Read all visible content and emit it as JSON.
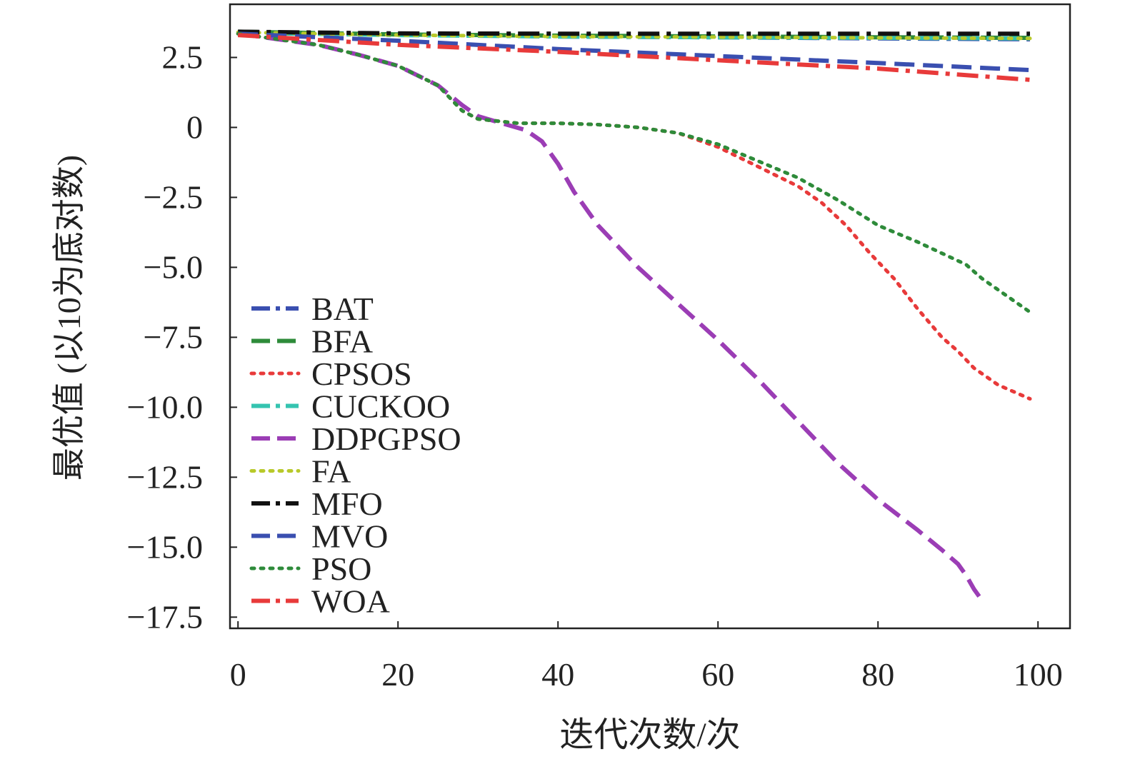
{
  "chart_data": {
    "type": "line",
    "title": "",
    "xlabel": "迭代次数/次",
    "ylabel": "最优值 (以10为底对数)",
    "xlim": [
      -1,
      104
    ],
    "ylim": [
      -17.9,
      4.4
    ],
    "xticks": [
      0,
      20,
      40,
      60,
      80,
      100
    ],
    "xtick_labels": [
      "0",
      "20",
      "40",
      "60",
      "80",
      "100"
    ],
    "yticks": [
      2.5,
      0,
      -2.5,
      -5.0,
      -7.5,
      -10.0,
      -12.5,
      -15.0,
      -17.5
    ],
    "ytick_labels": [
      "2.5",
      "0",
      "−2.5",
      "−5.0",
      "−7.5",
      "−10.0",
      "−12.5",
      "−15.0",
      "−17.5"
    ],
    "grid": false,
    "legend_position": "lower-left",
    "series": [
      {
        "name": "BAT",
        "color": "#3a4fb0",
        "dash": "dashdot",
        "points": [
          [
            0,
            3.4
          ],
          [
            20,
            3.32
          ],
          [
            40,
            3.25
          ],
          [
            60,
            3.22
          ],
          [
            80,
            3.18
          ],
          [
            99,
            3.15
          ]
        ]
      },
      {
        "name": "BFA",
        "color": "#2e8b3a",
        "dash": "dashed",
        "points": [
          [
            0,
            3.42
          ],
          [
            20,
            3.32
          ],
          [
            40,
            3.28
          ],
          [
            60,
            3.25
          ],
          [
            80,
            3.22
          ],
          [
            99,
            3.2
          ]
        ]
      },
      {
        "name": "CPSOS",
        "color": "#e83a3a",
        "dash": "dotted",
        "points": [
          [
            0,
            3.35
          ],
          [
            5,
            3.15
          ],
          [
            10,
            2.95
          ],
          [
            15,
            2.6
          ],
          [
            20,
            2.2
          ],
          [
            25,
            1.5
          ],
          [
            28,
            0.6
          ],
          [
            30,
            0.3
          ],
          [
            35,
            0.15
          ],
          [
            40,
            0.15
          ],
          [
            45,
            0.1
          ],
          [
            50,
            0.0
          ],
          [
            55,
            -0.2
          ],
          [
            60,
            -0.7
          ],
          [
            65,
            -1.4
          ],
          [
            70,
            -2.1
          ],
          [
            73,
            -2.7
          ],
          [
            76,
            -3.5
          ],
          [
            79,
            -4.5
          ],
          [
            82,
            -5.4
          ],
          [
            85,
            -6.5
          ],
          [
            88,
            -7.5
          ],
          [
            90,
            -8.0
          ],
          [
            92,
            -8.6
          ],
          [
            95,
            -9.2
          ],
          [
            99,
            -9.7
          ]
        ]
      },
      {
        "name": "CUCKOO",
        "color": "#35c4b0",
        "dash": "dashdot",
        "points": [
          [
            0,
            3.38
          ],
          [
            20,
            3.3
          ],
          [
            40,
            3.25
          ],
          [
            60,
            3.22
          ],
          [
            80,
            3.2
          ],
          [
            99,
            3.18
          ]
        ]
      },
      {
        "name": "DDPGPSO",
        "color": "#9b3db5",
        "dash": "dashed",
        "points": [
          [
            0,
            3.35
          ],
          [
            5,
            3.15
          ],
          [
            10,
            2.95
          ],
          [
            15,
            2.6
          ],
          [
            20,
            2.2
          ],
          [
            25,
            1.5
          ],
          [
            28,
            0.8
          ],
          [
            30,
            0.4
          ],
          [
            33,
            0.15
          ],
          [
            36,
            -0.1
          ],
          [
            38,
            -0.5
          ],
          [
            40,
            -1.3
          ],
          [
            42,
            -2.3
          ],
          [
            45,
            -3.5
          ],
          [
            50,
            -5.0
          ],
          [
            55,
            -6.3
          ],
          [
            60,
            -7.6
          ],
          [
            65,
            -9.0
          ],
          [
            70,
            -10.5
          ],
          [
            75,
            -12.0
          ],
          [
            80,
            -13.3
          ],
          [
            85,
            -14.4
          ],
          [
            88,
            -15.1
          ],
          [
            90,
            -15.6
          ],
          [
            91,
            -16.0
          ],
          [
            92,
            -16.5
          ],
          [
            93,
            -16.9
          ]
        ]
      },
      {
        "name": "FA",
        "color": "#b8c92a",
        "dash": "dotted",
        "points": [
          [
            0,
            3.4
          ],
          [
            20,
            3.3
          ],
          [
            40,
            3.25
          ],
          [
            60,
            3.23
          ],
          [
            80,
            3.2
          ],
          [
            99,
            3.18
          ]
        ]
      },
      {
        "name": "MFO",
        "color": "#111111",
        "dash": "dashdot",
        "points": [
          [
            0,
            3.42
          ],
          [
            20,
            3.36
          ],
          [
            40,
            3.35
          ],
          [
            60,
            3.35
          ],
          [
            80,
            3.35
          ],
          [
            99,
            3.35
          ]
        ]
      },
      {
        "name": "MVO",
        "color": "#3a4fb0",
        "dash": "dashed",
        "points": [
          [
            0,
            3.35
          ],
          [
            20,
            3.1
          ],
          [
            40,
            2.8
          ],
          [
            60,
            2.55
          ],
          [
            80,
            2.3
          ],
          [
            99,
            2.05
          ]
        ]
      },
      {
        "name": "PSO",
        "color": "#2e8b3a",
        "dash": "dotted",
        "points": [
          [
            0,
            3.35
          ],
          [
            5,
            3.15
          ],
          [
            10,
            2.95
          ],
          [
            15,
            2.6
          ],
          [
            20,
            2.2
          ],
          [
            25,
            1.5
          ],
          [
            28,
            0.6
          ],
          [
            30,
            0.3
          ],
          [
            35,
            0.15
          ],
          [
            40,
            0.15
          ],
          [
            45,
            0.1
          ],
          [
            50,
            0.0
          ],
          [
            55,
            -0.2
          ],
          [
            60,
            -0.6
          ],
          [
            65,
            -1.2
          ],
          [
            70,
            -1.8
          ],
          [
            75,
            -2.6
          ],
          [
            80,
            -3.5
          ],
          [
            85,
            -4.1
          ],
          [
            88,
            -4.5
          ],
          [
            91,
            -4.9
          ],
          [
            93,
            -5.4
          ],
          [
            96,
            -6.0
          ],
          [
            99,
            -6.6
          ]
        ]
      },
      {
        "name": "WOA",
        "color": "#e83a3a",
        "dash": "dashdot",
        "points": [
          [
            0,
            3.3
          ],
          [
            20,
            2.95
          ],
          [
            40,
            2.7
          ],
          [
            60,
            2.4
          ],
          [
            80,
            2.1
          ],
          [
            99,
            1.7
          ]
        ]
      }
    ]
  }
}
